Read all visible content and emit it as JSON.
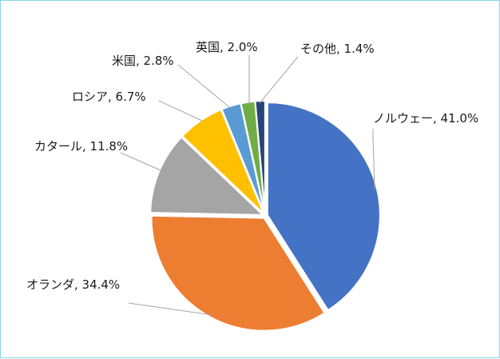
{
  "chart_data": {
    "type": "pie",
    "title": "",
    "slices": [
      {
        "label": "ノルウェー, 41.0%",
        "value": 41.0,
        "color": "#4472c4"
      },
      {
        "label": "オランダ, 34.4%",
        "value": 34.4,
        "color": "#ed7d31"
      },
      {
        "label": "カタール, 11.8%",
        "value": 11.8,
        "color": "#a5a5a5"
      },
      {
        "label": "ロシア, 6.7%",
        "value": 6.7,
        "color": "#ffc000"
      },
      {
        "label": "米国, 2.8%",
        "value": 2.8,
        "color": "#5b9bd5"
      },
      {
        "label": "英国, 2.0%",
        "value": 2.0,
        "color": "#70ad47"
      },
      {
        "label": "その他, 1.4%",
        "value": 1.4,
        "color": "#264478"
      }
    ],
    "start_angle_deg": 0,
    "direction": "clockwise",
    "legend": "none",
    "border_color": "#86d9e6"
  }
}
